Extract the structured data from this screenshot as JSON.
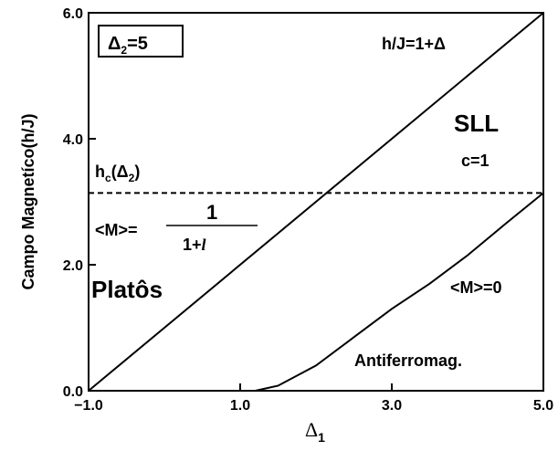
{
  "chart_data": {
    "type": "line",
    "xlim": [
      -1.0,
      5.0
    ],
    "ylim": [
      0.0,
      6.0
    ],
    "xticks": [
      {
        "value": -1.0,
        "label": "−1.0"
      },
      {
        "value": 1.0,
        "label": "1.0"
      },
      {
        "value": 3.0,
        "label": "3.0"
      },
      {
        "value": 5.0,
        "label": "5.0"
      }
    ],
    "yticks": [
      {
        "value": 0.0,
        "label": "0.0"
      },
      {
        "value": 2.0,
        "label": "2.0"
      },
      {
        "value": 4.0,
        "label": "4.0"
      },
      {
        "value": 6.0,
        "label": "6.0"
      }
    ],
    "x_label": [
      "Δ",
      "1"
    ],
    "y_label": "Campo Magnetíco(h/J)",
    "series": [
      {
        "color": "#000000",
        "dashed": false,
        "x": [
          -1.0,
          5.0
        ],
        "values": [
          0.0,
          6.0
        ]
      },
      {
        "color": "#000000",
        "dashed": true,
        "x": [
          -1.0,
          5.0
        ],
        "values": [
          3.14,
          3.14
        ]
      },
      {
        "color": "#000000",
        "dashed": false,
        "x": [
          1.2,
          1.5,
          2.0,
          2.5,
          3.0,
          3.5,
          4.0,
          4.5,
          5.0
        ],
        "values": [
          0.0,
          0.08,
          0.4,
          0.85,
          1.3,
          1.7,
          2.15,
          2.65,
          3.14
        ]
      }
    ],
    "annotations": {
      "delta2": [
        "Δ",
        "2",
        "=5"
      ],
      "line_label": "h/J=1+Δ",
      "sll": "SLL",
      "c": "c=1",
      "hc": [
        "h",
        "c",
        "(Δ",
        "2",
        ")"
      ],
      "magnetization": "<M>=",
      "numerator": "1",
      "denominator": [
        "1+",
        "l"
      ],
      "platos": "Platôs",
      "m_zero": "<M>=0",
      "antiferro": "Antiferromag."
    }
  }
}
